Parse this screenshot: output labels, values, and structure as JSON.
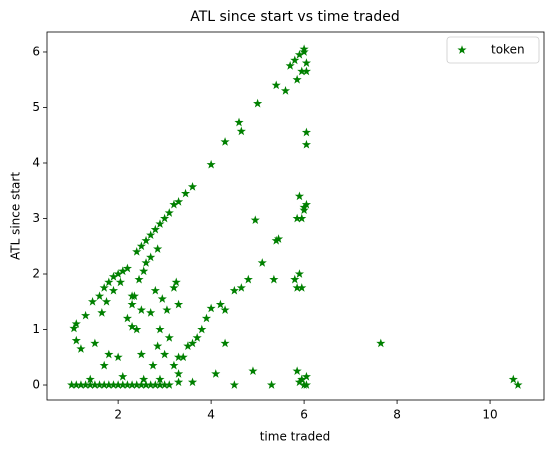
{
  "chart_data": {
    "type": "scatter",
    "title": "ATL since start vs time traded",
    "xlabel": "time traded",
    "ylabel": "ATL since start",
    "xlim": [
      0.47,
      11.16
    ],
    "ylim": [
      -0.27,
      6.36
    ],
    "xticks": [
      2,
      4,
      6,
      8,
      10
    ],
    "yticks": [
      0,
      1,
      2,
      3,
      4,
      5,
      6
    ],
    "grid": false,
    "legend": "upper right",
    "series": [
      {
        "name": "token",
        "color": "#008000",
        "x": [
          1.0,
          1.1,
          1.2,
          1.3,
          1.4,
          1.5,
          1.6,
          1.7,
          1.8,
          1.9,
          2.0,
          2.1,
          2.2,
          2.3,
          2.4,
          2.5,
          2.6,
          2.7,
          2.8,
          2.9,
          3.0,
          3.1,
          1.4,
          2.55,
          2.9,
          3.3,
          3.6,
          1.05,
          1.1,
          1.3,
          1.45,
          1.6,
          1.7,
          1.8,
          1.9,
          2.0,
          2.1,
          2.2,
          2.4,
          2.5,
          2.6,
          2.7,
          2.8,
          2.9,
          3.0,
          3.1,
          3.2,
          3.3,
          3.45,
          3.6,
          4.0,
          4.3,
          4.6,
          4.65,
          5.0,
          5.4,
          5.7,
          5.8,
          5.9,
          6.0,
          6.05,
          5.95,
          6.05,
          5.85,
          5.6,
          6.0,
          1.1,
          1.2,
          1.5,
          1.65,
          1.75,
          1.9,
          2.05,
          2.2,
          2.3,
          2.35,
          2.4,
          2.45,
          2.55,
          2.6,
          2.7,
          2.8,
          2.85,
          2.7,
          2.9,
          2.95,
          3.05,
          3.2,
          3.25,
          3.3,
          2.3,
          2.5,
          2.5,
          2.0,
          1.7,
          1.8,
          2.1,
          2.75,
          2.85,
          3.0,
          3.1,
          3.2,
          3.3,
          3.4,
          3.5,
          3.6,
          3.7,
          3.8,
          3.9,
          4.0,
          4.2,
          4.3,
          4.5,
          4.65,
          4.8,
          2.3,
          3.3,
          4.1,
          4.5,
          4.9,
          5.3,
          4.3,
          5.1,
          4.95,
          5.4,
          5.45,
          5.35,
          5.8,
          5.9,
          5.85,
          5.95,
          5.85,
          5.95,
          6.0,
          6.05,
          5.9,
          6.0,
          6.05,
          6.05,
          5.95,
          6.0,
          6.05,
          5.9,
          6.05,
          5.85,
          7.65,
          10.5,
          10.6
        ],
        "values": [
          0,
          0,
          0,
          0,
          0,
          0,
          0,
          0,
          0,
          0,
          0,
          0,
          0,
          0,
          0,
          0,
          0,
          0,
          0,
          0,
          0,
          0,
          0.1,
          0.1,
          0.1,
          0.05,
          0.05,
          1.02,
          1.1,
          1.25,
          1.5,
          1.6,
          1.75,
          1.85,
          1.95,
          2.0,
          2.05,
          2.1,
          2.4,
          2.5,
          2.6,
          2.7,
          2.8,
          2.9,
          3.0,
          3.1,
          3.25,
          3.3,
          3.45,
          3.57,
          3.97,
          4.38,
          4.73,
          4.57,
          5.07,
          5.4,
          5.75,
          5.85,
          5.95,
          6.05,
          5.8,
          5.65,
          5.65,
          5.5,
          5.3,
          6.0,
          0.8,
          0.65,
          0.75,
          1.3,
          1.5,
          1.7,
          1.85,
          1.2,
          1.45,
          1.6,
          1.0,
          1.9,
          2.05,
          2.2,
          2.3,
          1.7,
          2.45,
          1.3,
          1.0,
          1.55,
          1.35,
          1.75,
          1.85,
          1.45,
          1.05,
          1.35,
          0.55,
          0.5,
          0.35,
          0.55,
          0.15,
          0.35,
          0.7,
          0.55,
          0.85,
          0.35,
          0.5,
          0.5,
          0.7,
          0.75,
          0.85,
          1.0,
          1.2,
          1.38,
          1.45,
          1.35,
          1.7,
          1.75,
          1.9,
          1.6,
          0.2,
          0.2,
          0.0,
          0.25,
          0.0,
          0.75,
          2.2,
          2.97,
          2.6,
          2.63,
          1.9,
          1.9,
          2.0,
          1.75,
          1.75,
          3.0,
          3.0,
          3.15,
          3.25,
          3.4,
          3.2,
          4.33,
          4.55,
          0.1,
          0.0,
          0.15,
          0.05,
          0.0,
          0.25,
          0.75,
          0.1,
          0.0
        ]
      }
    ]
  }
}
